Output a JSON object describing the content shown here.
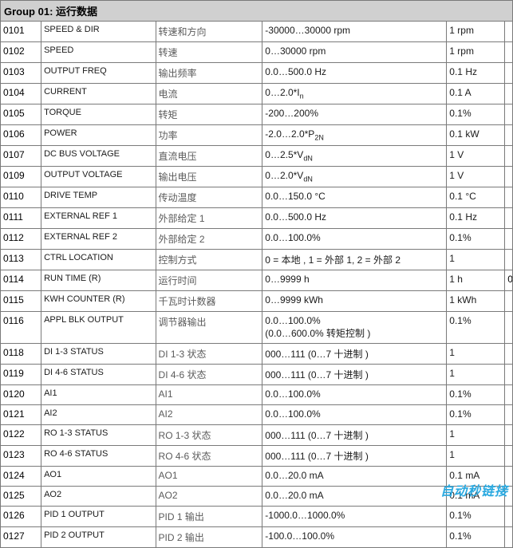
{
  "group_header": "Group 01: 运行数据",
  "watermark": "自动秒链接",
  "rows": [
    {
      "code": "0101",
      "en": "SPEED & DIR",
      "cn": "转速和方向",
      "range": "-30000…30000 rpm",
      "unit": "1 rpm"
    },
    {
      "code": "0102",
      "en": "SPEED",
      "cn": "转速",
      "range": "0…30000 rpm",
      "unit": "1 rpm"
    },
    {
      "code": "0103",
      "en": "OUTPUT FREQ",
      "cn": "输出频率",
      "range": "0.0…500.0 Hz",
      "unit": "0.1 Hz"
    },
    {
      "code": "0104",
      "en": "CURRENT",
      "cn": "电流",
      "range_html": "0…2.0*I<sub>n</sub>",
      "unit": "0.1 A"
    },
    {
      "code": "0105",
      "en": "TORQUE",
      "cn": "转矩",
      "range": "-200…200%",
      "unit": "0.1%"
    },
    {
      "code": "0106",
      "en": "POWER",
      "cn": "功率",
      "range_html": "-2.0…2.0*P<sub>2N</sub>",
      "unit": "0.1 kW"
    },
    {
      "code": "0107",
      "en": "DC BUS VOLTAGE",
      "cn": "直流电压",
      "range_html": "0…2.5*V<sub>dN</sub>",
      "unit": "1 V"
    },
    {
      "code": "0109",
      "en": "OUTPUT VOLTAGE",
      "cn": "输出电压",
      "range_html": "0…2.0*V<sub>dN</sub>",
      "unit": "1 V"
    },
    {
      "code": "0110",
      "en": "DRIVE TEMP",
      "cn": "传动温度",
      "range": "0.0…150.0 °C",
      "unit": "0.1 °C"
    },
    {
      "code": "0111",
      "en": "EXTERNAL REF 1",
      "cn": "外部给定 1",
      "range": "0.0…500.0 Hz",
      "unit": "0.1 Hz"
    },
    {
      "code": "0112",
      "en": "EXTERNAL REF 2",
      "cn": "外部给定 2",
      "range": "0.0…100.0%",
      "unit": "0.1%"
    },
    {
      "code": "0113",
      "en": "CTRL LOCATION",
      "cn": "控制方式",
      "range": "0 = 本地 , 1 = 外部 1, 2 = 外部 2",
      "unit": "1"
    },
    {
      "code": "0114",
      "en": "RUN TIME (R)",
      "cn": "运行时间",
      "range": "0…9999 h",
      "unit": "1 h",
      "trail": "0"
    },
    {
      "code": "0115",
      "en": "KWH COUNTER (R)",
      "cn": "千瓦时计数器",
      "range": "0…9999 kWh",
      "unit": "1 kWh"
    },
    {
      "code": "0116",
      "en": "APPL BLK OUTPUT",
      "cn": "调节器输出",
      "range_html": "0.0…100.0%<br>(0.0…600.0% 转矩控制 )",
      "unit": "0.1%"
    },
    {
      "code": "0118",
      "en": "DI 1-3 STATUS",
      "cn": "DI 1-3 状态",
      "range": "000…111 (0…7 十进制 )",
      "unit": "1"
    },
    {
      "code": "0119",
      "en": "DI 4-6 STATUS",
      "cn": "DI 4-6 状态",
      "range": "000…111 (0…7 十进制 )",
      "unit": "1"
    },
    {
      "code": "0120",
      "en": "AI1",
      "cn": "AI1",
      "range": "0.0…100.0%",
      "unit": "0.1%"
    },
    {
      "code": "0121",
      "en": "AI2",
      "cn": "AI2",
      "range": "0.0…100.0%",
      "unit": "0.1%"
    },
    {
      "code": "0122",
      "en": "RO 1-3 STATUS",
      "cn": "RO 1-3 状态",
      "range": "000…111 (0…7 十进制 )",
      "unit": "1"
    },
    {
      "code": "0123",
      "en": "RO 4-6 STATUS",
      "cn": "RO 4-6 状态",
      "range": "000…111 (0…7 十进制 )",
      "unit": "1"
    },
    {
      "code": "0124",
      "en": "AO1",
      "cn": "AO1",
      "range": "0.0…20.0 mA",
      "unit": "0.1 mA"
    },
    {
      "code": "0125",
      "en": "AO2",
      "cn": "AO2",
      "range": "0.0…20.0 mA",
      "unit": "0.1 mA"
    },
    {
      "code": "0126",
      "en": "PID 1 OUTPUT",
      "cn": "PID 1 输出",
      "range": "-1000.0…1000.0%",
      "unit": "0.1%"
    },
    {
      "code": "0127",
      "en": "PID 2 OUTPUT",
      "cn": "PID 2 输出",
      "range": "-100.0…100.0%",
      "unit": "0.1%"
    }
  ]
}
